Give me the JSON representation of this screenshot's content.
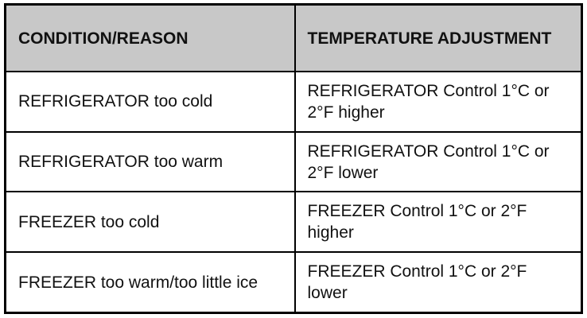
{
  "table": {
    "header": [
      "CONDITION/REASON",
      "TEMPERATURE ADJUSTMENT"
    ],
    "rows": [
      [
        "REFRIGERATOR too cold",
        "REFRIGERATOR Control 1°C or 2°F higher"
      ],
      [
        "REFRIGERATOR too warm",
        "REFRIGERATOR Control 1°C or 2°F lower"
      ],
      [
        "FREEZER too cold",
        "FREEZER Control 1°C or 2°F higher"
      ],
      [
        "FREEZER too warm/too little ice",
        "FREEZER Control 1°C or 2°F lower"
      ]
    ]
  }
}
